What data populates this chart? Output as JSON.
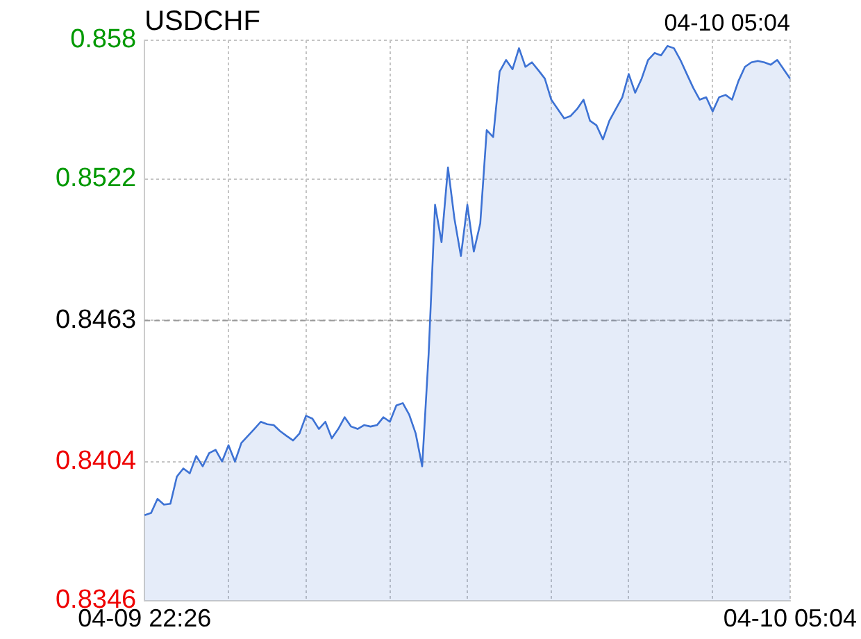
{
  "chart_data": {
    "type": "area",
    "title": "USDCHF",
    "annotations": [
      "04-10 05:04"
    ],
    "categories": [
      "04-09 22:26",
      null,
      null,
      null,
      null,
      null,
      null,
      null,
      null,
      null,
      null,
      null,
      null,
      null,
      null,
      null,
      null,
      null,
      null,
      null,
      null,
      null,
      null,
      null,
      null,
      null,
      null,
      null,
      null,
      null,
      null,
      null,
      null,
      null,
      null,
      null,
      null,
      null,
      null,
      null,
      null,
      null,
      null,
      null,
      null,
      null,
      null,
      null,
      null,
      null,
      null,
      null,
      null,
      null,
      null,
      null,
      null,
      null,
      null,
      null,
      null,
      null,
      null,
      null,
      null,
      null,
      null,
      null,
      null,
      null,
      null,
      null,
      null,
      null,
      null,
      null,
      null,
      null,
      null,
      null,
      null,
      null,
      null,
      null,
      null,
      null,
      null,
      null,
      null,
      null,
      null,
      null,
      null,
      null,
      null,
      null,
      null,
      null,
      null,
      null,
      "04-10 05:04"
    ],
    "ylim": [
      0.8346,
      0.858
    ],
    "yticks": [
      0.8346,
      0.8404,
      0.8463,
      0.8522,
      0.858
    ],
    "grid": true,
    "legend": false,
    "marker": "none",
    "line_style": "solid",
    "ref_lines": [
      {
        "axis": "y",
        "value": 0.8463,
        "color": "#999999",
        "line_style": "dashed"
      }
    ],
    "series": [
      {
        "color": "#3d72d4",
        "values": [
          0.83817,
          0.83826,
          0.83885,
          0.83861,
          0.83865,
          0.83978,
          0.84012,
          0.83992,
          0.84064,
          0.84021,
          0.84076,
          0.8409,
          0.84041,
          0.84109,
          0.84041,
          0.84119,
          0.84148,
          0.84177,
          0.84207,
          0.84197,
          0.84193,
          0.84168,
          0.84148,
          0.84129,
          0.84158,
          0.84232,
          0.8422,
          0.84177,
          0.84207,
          0.84138,
          0.84177,
          0.84226,
          0.84187,
          0.84177,
          0.84193,
          0.84187,
          0.84193,
          0.84226,
          0.84207,
          0.84275,
          0.84285,
          0.84236,
          0.84158,
          0.84021,
          0.84489,
          0.85113,
          0.84957,
          0.85269,
          0.85055,
          0.84899,
          0.85113,
          0.84918,
          0.85035,
          0.85425,
          0.85396,
          0.85669,
          0.85718,
          0.85679,
          0.85767,
          0.85689,
          0.85708,
          0.85675,
          0.8564,
          0.85552,
          0.85513,
          0.85474,
          0.85484,
          0.85513,
          0.85552,
          0.85464,
          0.85445,
          0.85386,
          0.85464,
          0.85513,
          0.85562,
          0.85659,
          0.85581,
          0.8564,
          0.85718,
          0.85747,
          0.85737,
          0.85776,
          0.85767,
          0.85718,
          0.85659,
          0.85601,
          0.85552,
          0.85562,
          0.85503,
          0.85562,
          0.85572,
          0.85552,
          0.8563,
          0.85689,
          0.85708,
          0.85714,
          0.85708,
          0.85698,
          0.85718,
          0.85679,
          0.8564
        ]
      }
    ]
  }
}
